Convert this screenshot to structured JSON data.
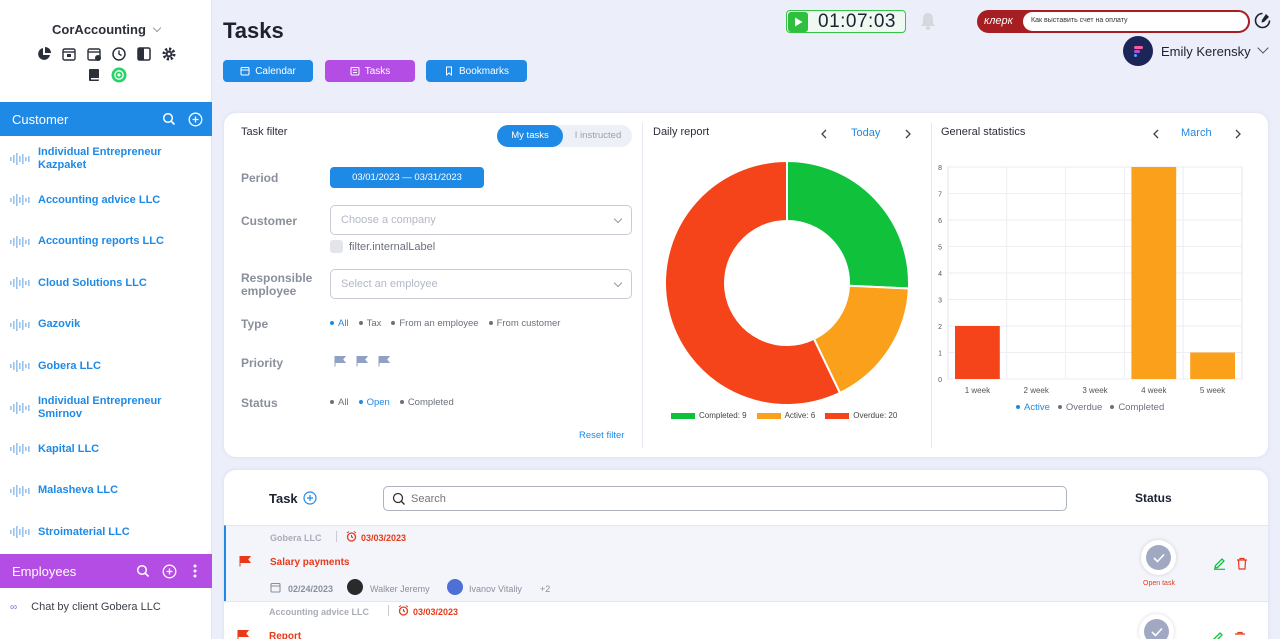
{
  "app": {
    "name": "CorAccounting"
  },
  "sidebar": {
    "customer_title": "Customer",
    "customers": [
      {
        "name": "Individual Entrepreneur Kazpaket"
      },
      {
        "name": "Accounting advice LLC"
      },
      {
        "name": "Accounting reports LLC"
      },
      {
        "name": "Cloud Solutions LLC"
      },
      {
        "name": "Gazovik"
      },
      {
        "name": "Gobera LLC"
      },
      {
        "name": "Individual Entrepreneur Smirnov"
      },
      {
        "name": "Kapital LLC"
      },
      {
        "name": "Malasheva LLC"
      },
      {
        "name": "Stroimaterial LLC"
      }
    ],
    "employees_title": "Employees",
    "chat_item": "Chat by client Gobera LLC"
  },
  "header": {
    "title": "Tasks",
    "nav": {
      "calendar": "Calendar",
      "tasks": "Tasks",
      "bookmarks": "Bookmarks"
    },
    "timer": "01:07:03",
    "klerk_logo": "клерк",
    "klerk_query": "Как выставить счет на оплату",
    "user_name": "Emily Kerensky"
  },
  "filter": {
    "title": "Task filter",
    "toggle_my": "My tasks",
    "toggle_instructed": "I instructed",
    "period_label": "Period",
    "period_value": "03/01/2023 — 03/31/2023",
    "customer_label": "Customer",
    "customer_placeholder": "Choose a company",
    "internal_label": "filter.internalLabel",
    "responsible_label": "Responsible employee",
    "employee_placeholder": "Select an employee",
    "type_label": "Type",
    "type_options": [
      "All",
      "Tax",
      "From an employee",
      "From customer"
    ],
    "priority_label": "Priority",
    "status_label": "Status",
    "status_options": [
      "All",
      "Open",
      "Completed"
    ],
    "reset": "Reset filter"
  },
  "daily": {
    "title": "Daily report",
    "nav_label": "Today",
    "legend": [
      "Completed: 9",
      "Active: 6",
      "Overdue: 20"
    ]
  },
  "stats": {
    "title": "General statistics",
    "nav_label": "March",
    "legend": [
      "Active",
      "Overdue",
      "Completed"
    ]
  },
  "tasks": {
    "task_header": "Task",
    "search_placeholder": "Search",
    "status_header": "Status",
    "rows": [
      {
        "company": "Gobera LLC",
        "deadline": "03/03/2023",
        "name": "Salary payments",
        "created": "02/24/2023",
        "assignee1": "Walker Jeremy",
        "assignee2": "Ivanov Vitaliy",
        "extra": "+2",
        "status": "Open task"
      },
      {
        "company": "Accounting advice LLC",
        "deadline": "03/03/2023",
        "name": "Report"
      }
    ]
  },
  "chart_data": [
    {
      "type": "pie",
      "title": "Daily report",
      "labels": [
        "Completed",
        "Active",
        "Overdue"
      ],
      "values": [
        9,
        6,
        20
      ],
      "colors": [
        "#10c23b",
        "#fba01b",
        "#f5431a"
      ]
    },
    {
      "type": "bar",
      "title": "General statistics",
      "categories": [
        "1 week",
        "2 week",
        "3 week",
        "4 week",
        "5 week"
      ],
      "series": [
        {
          "name": "Active",
          "values": [
            0,
            0,
            0,
            8,
            1
          ],
          "color": "#fba01b"
        },
        {
          "name": "Overdue",
          "values": [
            2,
            0,
            0,
            0,
            0
          ],
          "color": "#f5431a"
        },
        {
          "name": "Completed",
          "values": [
            0,
            0,
            0,
            0,
            0
          ],
          "color": "#10c23b"
        }
      ],
      "yticks": [
        "0",
        "1",
        "2",
        "3",
        "4",
        "5",
        "6",
        "7",
        "8"
      ],
      "ylim": [
        0,
        8
      ]
    }
  ],
  "colors": {
    "accent": "#1e8ae6",
    "employees": "#b44de3",
    "overdue": "#f5431a"
  }
}
